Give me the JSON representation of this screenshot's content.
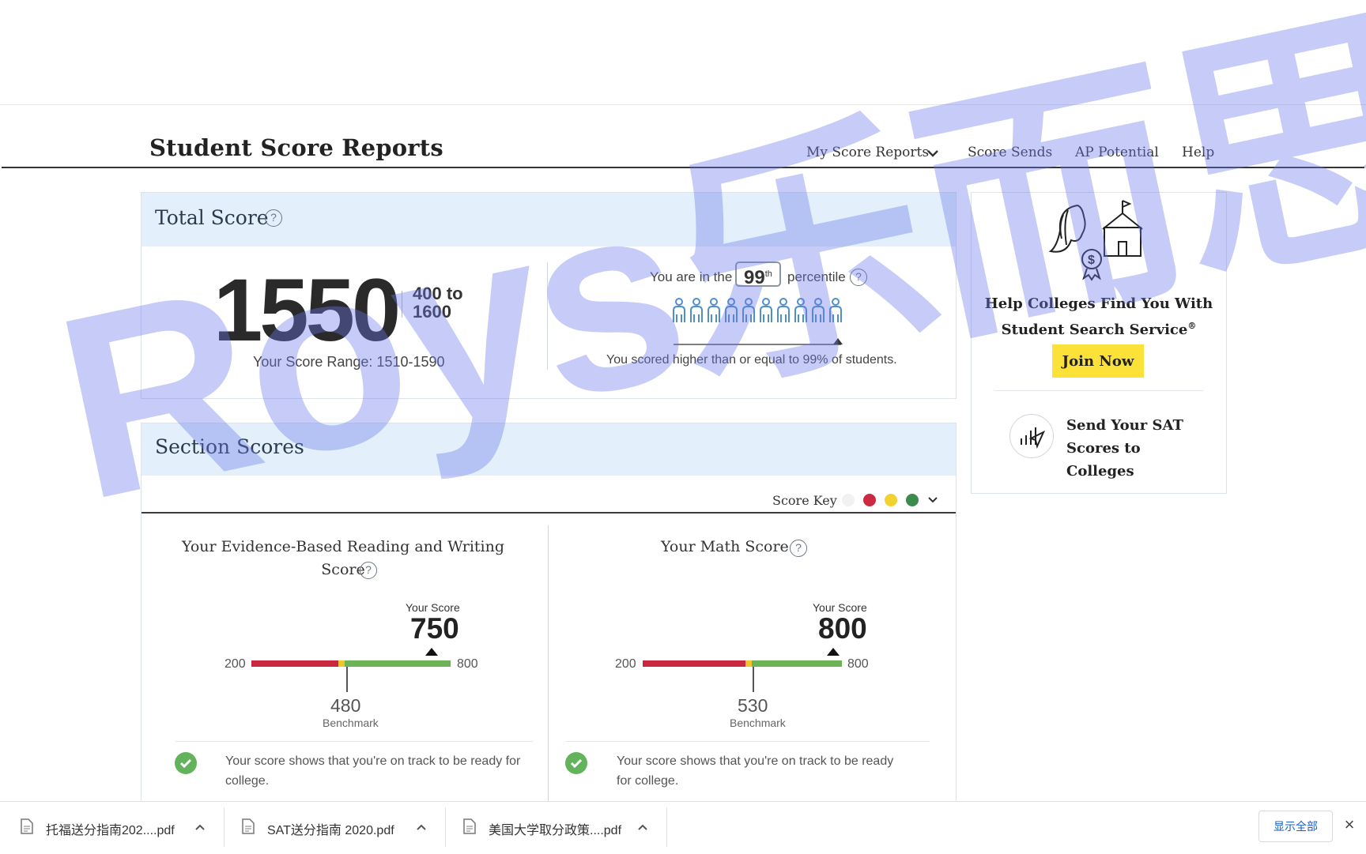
{
  "header": {
    "title": "Student Score Reports",
    "nav": [
      "My Score Reports",
      "Score Sends",
      "AP Potential",
      "Help"
    ]
  },
  "total": {
    "heading": "Total Score",
    "help": "?",
    "score": "1550",
    "scale_line1": "400 to",
    "scale_line2": "1600",
    "range_text": "Your Score Range: 1510-1590",
    "percentile_pre": "You are in the",
    "percentile_value": "99",
    "percentile_suffix": "th",
    "percentile_post": "percentile",
    "percentile_desc": "You scored higher than or equal to 99% of students."
  },
  "sections": {
    "heading": "Section Scores",
    "score_key": "Score Key",
    "colors": {
      "red": "#cc2a41",
      "yellow": "#f2d130",
      "green": "#3c8a4c",
      "bar_green": "#6cb356",
      "bar_red": "#c9293f"
    },
    "items": [
      {
        "title_line1": "Your Evidence-Based Reading and Writing",
        "title_line2": "Score",
        "your_score_label": "Your Score",
        "score": "750",
        "min": "200",
        "max": "800",
        "benchmark": "480",
        "benchmark_label": "Benchmark",
        "message_line1": "Your score shows that you're on track to be ready for",
        "message_line2": "college."
      },
      {
        "title_line1": "Your Math Score",
        "your_score_label": "Your Score",
        "score": "800",
        "min": "200",
        "max": "800",
        "benchmark": "530",
        "benchmark_label": "Benchmark",
        "message_line1": "Your score shows that you're on track to be ready",
        "message_line2": "for college."
      }
    ]
  },
  "sidebar": {
    "search_title_line1": "Help Colleges Find You With",
    "search_title_line2": "Student Search Service",
    "search_title_mark": "®",
    "join": "Join Now",
    "send_line1": "Send Your SAT",
    "send_line2": "Scores to",
    "send_line3": "Colleges"
  },
  "downloads": {
    "files": [
      "托福送分指南202....pdf",
      "SAT送分指南 2020.pdf",
      "美国大学取分政策....pdf"
    ],
    "show_all": "显示全部",
    "close": "×"
  },
  "watermark": "Roys乐而思"
}
